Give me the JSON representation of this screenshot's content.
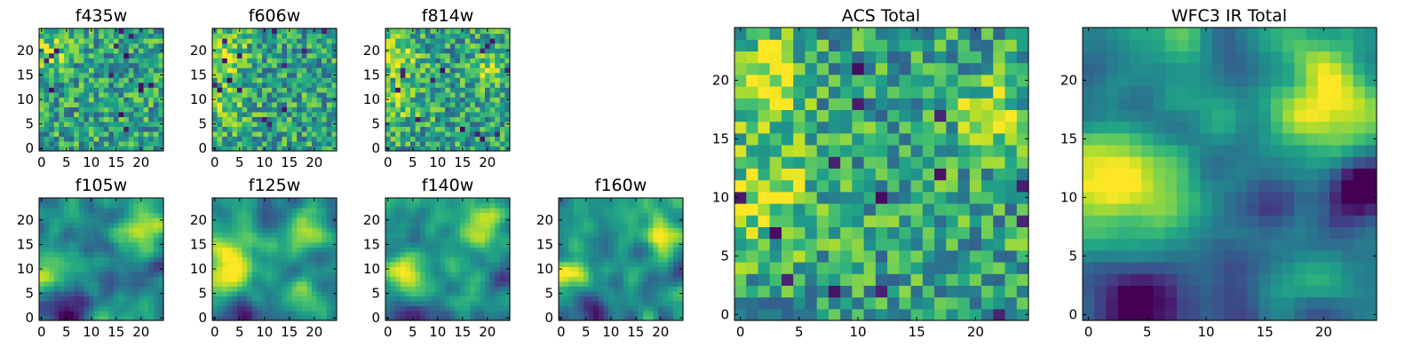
{
  "chart_data": [
    {
      "type": "heatmap",
      "title": "f435w",
      "grid_size": 25,
      "xlim": [
        0,
        24
      ],
      "ylim": [
        0,
        24
      ],
      "x_ticks": [
        0,
        5,
        10,
        15,
        20
      ],
      "y_ticks": [
        0,
        5,
        10,
        15,
        20
      ],
      "colormap": "viridis",
      "grid": false,
      "pattern": "noise",
      "seed": 11,
      "blobs": [
        [
          2,
          20,
          2.5,
          0.25
        ]
      ]
    },
    {
      "type": "heatmap",
      "title": "f606w",
      "grid_size": 25,
      "xlim": [
        0,
        24
      ],
      "ylim": [
        0,
        24
      ],
      "x_ticks": [
        0,
        5,
        10,
        15,
        20
      ],
      "y_ticks": [
        0,
        5,
        10,
        15,
        20
      ],
      "colormap": "viridis",
      "grid": false,
      "pattern": "noise",
      "seed": 23,
      "blobs": [
        [
          2,
          19,
          3,
          0.3
        ],
        [
          2,
          9,
          3,
          0.25
        ]
      ]
    },
    {
      "type": "heatmap",
      "title": "f814w",
      "grid_size": 25,
      "xlim": [
        0,
        24
      ],
      "ylim": [
        0,
        24
      ],
      "x_ticks": [
        0,
        5,
        10,
        15,
        20
      ],
      "y_ticks": [
        0,
        5,
        10,
        15,
        20
      ],
      "colormap": "viridis",
      "grid": false,
      "pattern": "noise",
      "seed": 37,
      "blobs": [
        [
          2,
          19,
          3,
          0.3
        ],
        [
          21,
          17,
          2.5,
          0.3
        ],
        [
          2,
          9,
          3,
          0.2
        ]
      ]
    },
    {
      "type": "heatmap",
      "title": "f105w",
      "grid_size": 25,
      "xlim": [
        0,
        24
      ],
      "ylim": [
        0,
        24
      ],
      "x_ticks": [
        0,
        5,
        10,
        15,
        20
      ],
      "y_ticks": [
        0,
        5,
        10,
        15,
        20
      ],
      "colormap": "viridis",
      "grid": false,
      "pattern": "smooth",
      "seed": 41,
      "blobs": [
        [
          1,
          9,
          3,
          0.45
        ],
        [
          20,
          18,
          3,
          0.4
        ],
        [
          5,
          1,
          3,
          -0.45
        ],
        [
          23,
          9,
          2,
          -0.25
        ]
      ]
    },
    {
      "type": "heatmap",
      "title": "f125w",
      "grid_size": 25,
      "xlim": [
        0,
        24
      ],
      "ylim": [
        0,
        24
      ],
      "x_ticks": [
        0,
        5,
        10,
        15,
        20
      ],
      "y_ticks": [
        0,
        5,
        10,
        15,
        20
      ],
      "colormap": "viridis",
      "grid": false,
      "pattern": "smooth",
      "seed": 53,
      "blobs": [
        [
          2,
          11,
          4,
          0.45
        ],
        [
          19,
          18,
          3,
          0.35
        ],
        [
          20,
          2,
          3,
          0.3
        ],
        [
          5,
          1,
          3,
          -0.35
        ]
      ]
    },
    {
      "type": "heatmap",
      "title": "f140w",
      "grid_size": 25,
      "xlim": [
        0,
        24
      ],
      "ylim": [
        0,
        24
      ],
      "x_ticks": [
        0,
        5,
        10,
        15,
        20
      ],
      "y_ticks": [
        0,
        5,
        10,
        15,
        20
      ],
      "colormap": "viridis",
      "grid": false,
      "pattern": "smooth",
      "seed": 67,
      "blobs": [
        [
          2,
          10,
          3.5,
          0.4
        ],
        [
          19,
          18,
          3,
          0.4
        ],
        [
          5,
          1,
          3,
          -0.35
        ],
        [
          23,
          9,
          2,
          -0.3
        ]
      ]
    },
    {
      "type": "heatmap",
      "title": "f160w",
      "grid_size": 25,
      "xlim": [
        0,
        24
      ],
      "ylim": [
        0,
        24
      ],
      "x_ticks": [
        0,
        5,
        10,
        15,
        20
      ],
      "y_ticks": [
        0,
        5,
        10,
        15,
        20
      ],
      "colormap": "viridis",
      "grid": false,
      "pattern": "smooth",
      "seed": 79,
      "blobs": [
        [
          1,
          9,
          3,
          0.45
        ],
        [
          20,
          17,
          2.5,
          0.45
        ],
        [
          6,
          1,
          3,
          -0.3
        ],
        [
          23,
          9,
          2,
          -0.3
        ]
      ]
    },
    {
      "type": "heatmap",
      "title": "ACS Total",
      "grid_size": 25,
      "xlim": [
        0,
        24
      ],
      "ylim": [
        0,
        24
      ],
      "x_ticks": [
        0,
        5,
        10,
        15,
        20
      ],
      "y_ticks": [
        0,
        5,
        10,
        15,
        20
      ],
      "colormap": "viridis",
      "grid": false,
      "pattern": "noise",
      "seed": 97,
      "blobs": [
        [
          2,
          20,
          2.5,
          0.4
        ],
        [
          2,
          10,
          3,
          0.35
        ],
        [
          21,
          17,
          2,
          0.3
        ]
      ]
    },
    {
      "type": "heatmap",
      "title": "WFC3 IR Total",
      "grid_size": 25,
      "xlim": [
        0,
        24
      ],
      "ylim": [
        0,
        24
      ],
      "x_ticks": [
        0,
        5,
        10,
        15,
        20
      ],
      "y_ticks": [
        0,
        5,
        10,
        15,
        20
      ],
      "colormap": "viridis",
      "grid": false,
      "pattern": "smooth",
      "seed": 101,
      "blobs": [
        [
          1,
          10,
          3.5,
          0.55
        ],
        [
          20,
          18,
          3,
          0.55
        ],
        [
          5,
          1,
          3.5,
          -0.6
        ],
        [
          23,
          11,
          2,
          -0.45
        ],
        [
          16,
          8,
          2.5,
          -0.2
        ]
      ]
    }
  ]
}
